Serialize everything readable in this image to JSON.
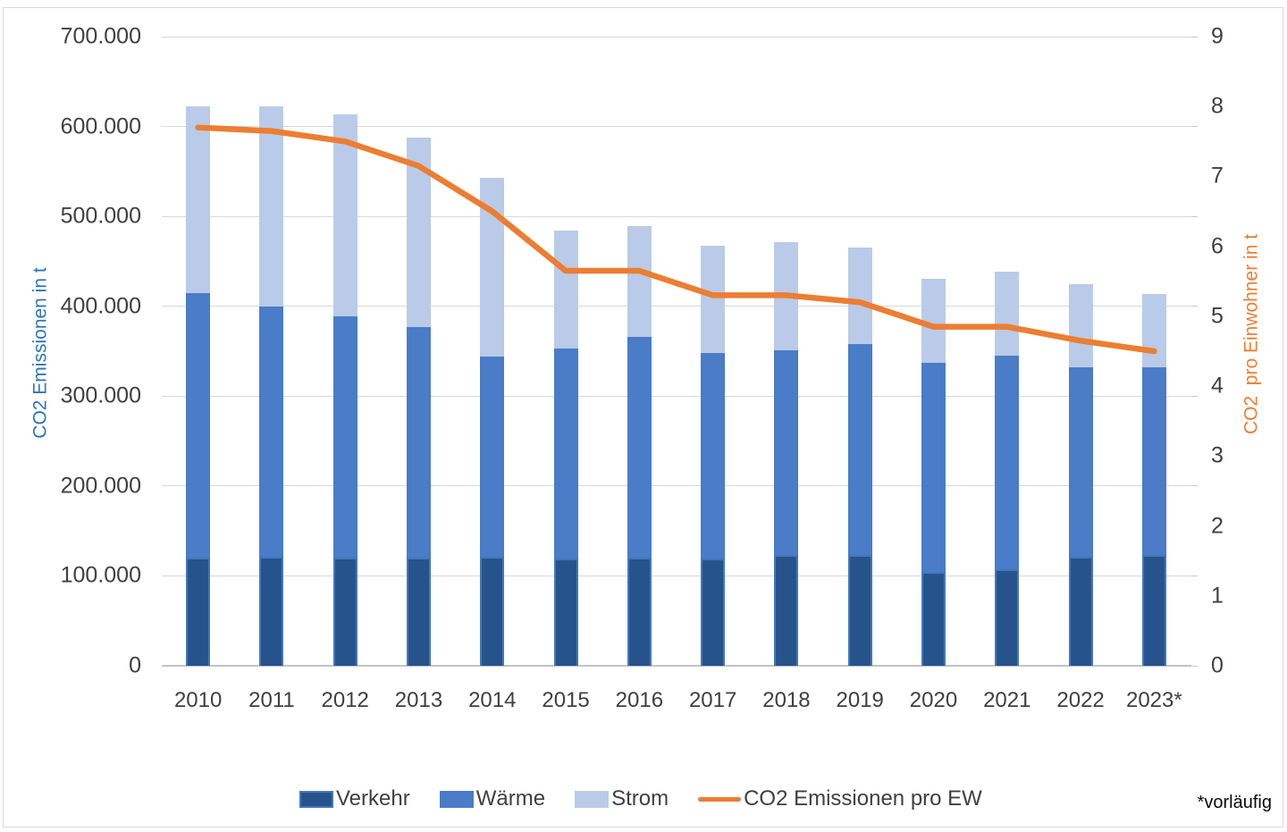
{
  "chart_data": {
    "type": "combo-stacked-bar-line",
    "categories": [
      "2010",
      "2011",
      "2012",
      "2013",
      "2014",
      "2015",
      "2016",
      "2017",
      "2018",
      "2019",
      "2020",
      "2021",
      "2022",
      "2023*"
    ],
    "series": [
      {
        "name": "Verkehr",
        "type": "bar",
        "color": "#27538C",
        "border": "#4377BE",
        "axis": "left",
        "values": [
          120000,
          121000,
          120000,
          120000,
          121000,
          119000,
          120000,
          119000,
          123000,
          123000,
          104000,
          107000,
          121000,
          123000
        ]
      },
      {
        "name": "Wärme",
        "type": "bar",
        "color": "#4A7CC7",
        "axis": "left",
        "values": [
          295000,
          279000,
          269000,
          257000,
          223000,
          234000,
          246000,
          229000,
          228000,
          235000,
          233000,
          238000,
          211000,
          209000
        ]
      },
      {
        "name": "Strom",
        "type": "bar",
        "color": "#B9CBE8",
        "axis": "left",
        "values": [
          207000,
          222000,
          224000,
          211000,
          199000,
          131000,
          123000,
          119000,
          120000,
          107000,
          94000,
          93000,
          93000,
          82000
        ]
      },
      {
        "name": "CO2 Emissionen pro EW",
        "type": "line",
        "color": "#ED7D31",
        "axis": "right",
        "values": [
          7.7,
          7.65,
          7.5,
          7.15,
          6.5,
          5.65,
          5.65,
          5.3,
          5.3,
          5.2,
          4.85,
          4.85,
          4.65,
          4.5
        ]
      }
    ],
    "left_axis": {
      "title": "CO2 Emissionen in t",
      "min": 0,
      "max": 700000,
      "step": 100000,
      "ticks": [
        "0",
        "100.000",
        "200.000",
        "300.000",
        "400.000",
        "500.000",
        "600.000",
        "700.000"
      ]
    },
    "right_axis": {
      "title": "CO2  pro Einwohner in t",
      "min": 0,
      "max": 9,
      "step": 1,
      "ticks": [
        "0",
        "1",
        "2",
        "3",
        "4",
        "5",
        "6",
        "7",
        "8",
        "9"
      ]
    },
    "legend": [
      {
        "kind": "bar",
        "label": "Verkehr",
        "color": "#27538C",
        "border": "#4377BE"
      },
      {
        "kind": "bar",
        "label": "Wärme",
        "color": "#4A7CC7"
      },
      {
        "kind": "bar",
        "label": "Strom",
        "color": "#B9CBE8"
      },
      {
        "kind": "line",
        "label": "CO2 Emissionen pro EW",
        "color": "#ED7D31"
      }
    ],
    "grid": "horizontal",
    "legend_position": "bottom",
    "footnote": "*vorläufig"
  }
}
